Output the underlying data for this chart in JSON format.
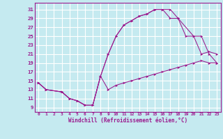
{
  "xlabel": "Windchill (Refroidissement éolien,°C)",
  "bg_color": "#c5eaf0",
  "grid_color": "#ffffff",
  "line_color": "#9b1b8e",
  "xlim": [
    -0.5,
    23.5
  ],
  "ylim": [
    8.0,
    32.5
  ],
  "xticks": [
    0,
    1,
    2,
    3,
    4,
    5,
    6,
    7,
    8,
    9,
    10,
    11,
    12,
    13,
    14,
    15,
    16,
    17,
    18,
    19,
    20,
    21,
    22,
    23
  ],
  "yticks": [
    9,
    11,
    13,
    15,
    17,
    19,
    21,
    23,
    25,
    27,
    29,
    31
  ],
  "line1_x": [
    0,
    1,
    3,
    4,
    5,
    6,
    7,
    8,
    9,
    10,
    11,
    12,
    13,
    14,
    15,
    16,
    17,
    18,
    19,
    20,
    21,
    22,
    23
  ],
  "line1_y": [
    14.5,
    13.0,
    12.5,
    11.0,
    10.5,
    9.5,
    9.5,
    16.0,
    13.0,
    14.0,
    14.5,
    15.0,
    15.5,
    16.0,
    16.5,
    17.0,
    17.5,
    18.0,
    18.5,
    19.0,
    19.5,
    19.0,
    19.0
  ],
  "line2_x": [
    0,
    1,
    3,
    4,
    5,
    6,
    7,
    8,
    9,
    10,
    11,
    12,
    13,
    14,
    15,
    16,
    17,
    18,
    20,
    21,
    22,
    23
  ],
  "line2_y": [
    14.5,
    13.0,
    12.5,
    11.0,
    10.5,
    9.5,
    9.5,
    16.0,
    21.0,
    25.0,
    27.5,
    28.5,
    29.5,
    30.0,
    31.0,
    31.0,
    31.0,
    29.0,
    25.0,
    21.0,
    21.5,
    21.0
  ],
  "line3_x": [
    0,
    1,
    3,
    4,
    5,
    6,
    7,
    8,
    9,
    10,
    11,
    12,
    13,
    14,
    15,
    16,
    17,
    18,
    19,
    20,
    21,
    22,
    23
  ],
  "line3_y": [
    14.5,
    13.0,
    12.5,
    11.0,
    10.5,
    9.5,
    9.5,
    16.0,
    21.0,
    25.0,
    27.5,
    28.5,
    29.5,
    30.0,
    31.0,
    31.0,
    29.0,
    29.0,
    25.0,
    25.0,
    25.0,
    21.0,
    19.0
  ]
}
